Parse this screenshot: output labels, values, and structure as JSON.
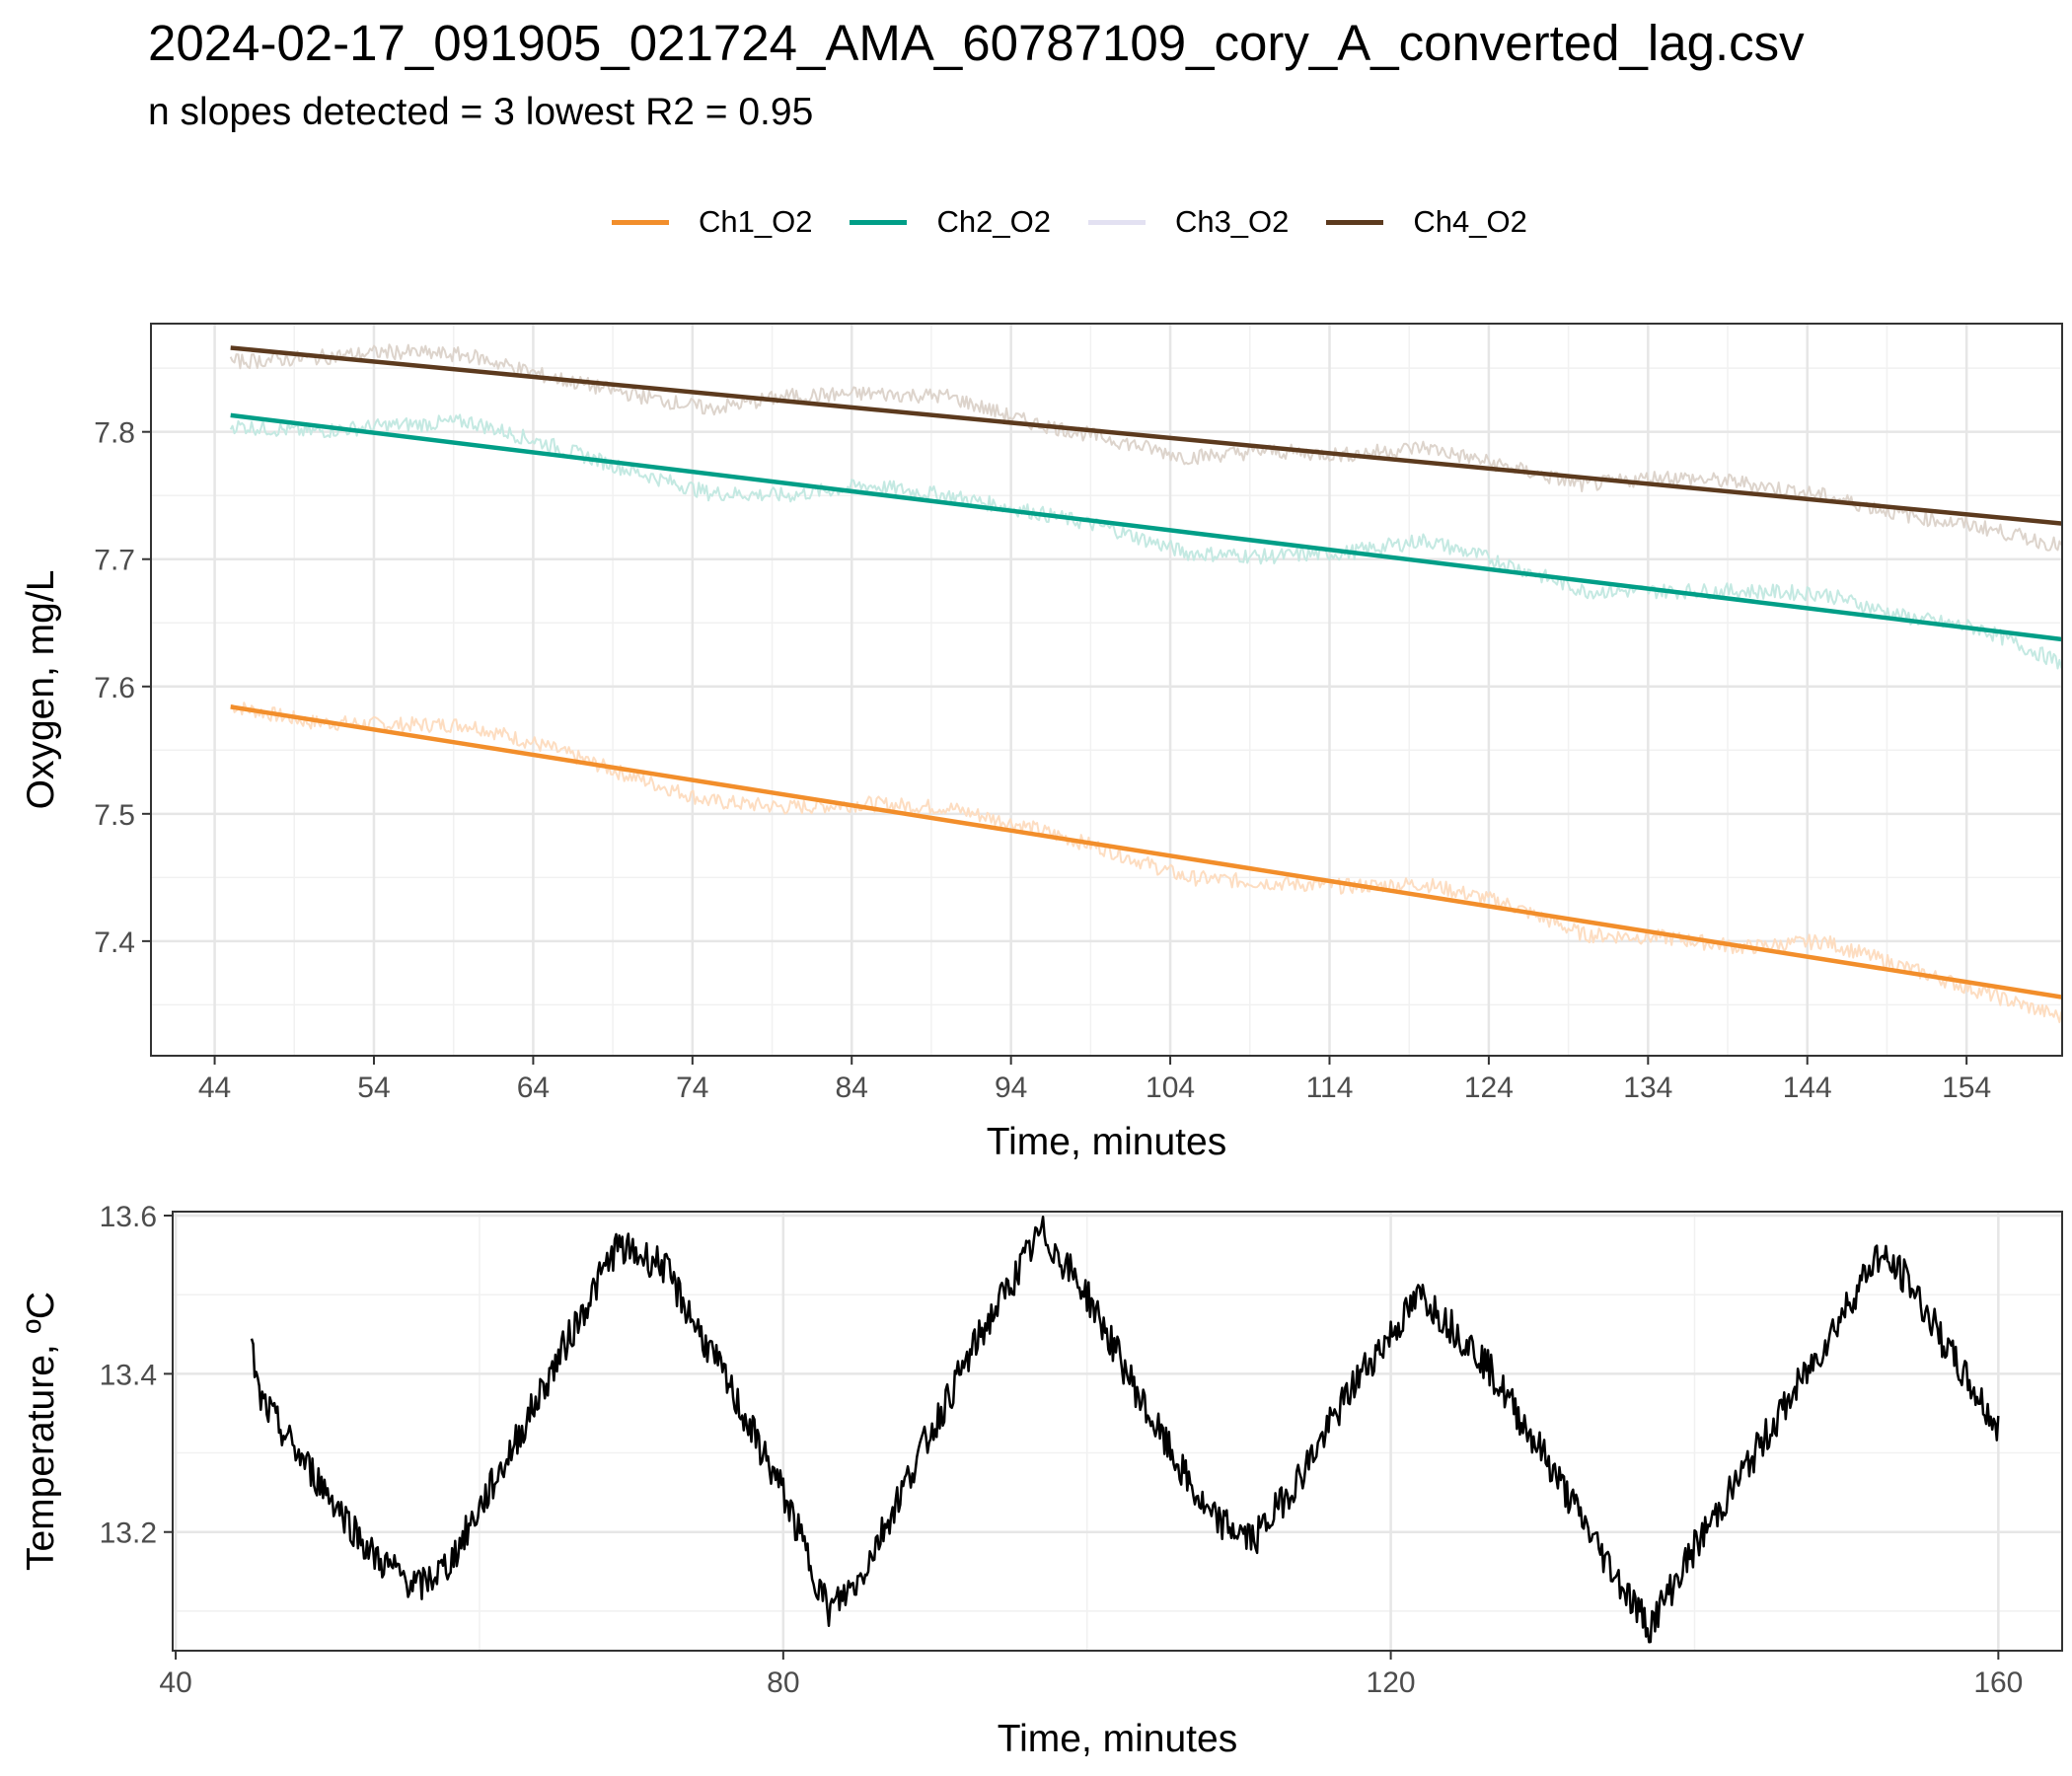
{
  "title": "2024-02-17_091905_021724_AMA_60787109_cory_A_converted_lag.csv",
  "subtitle": "n slopes detected = 3  lowest R2 = 0.95",
  "legend": [
    {
      "label": "Ch1_O2",
      "color": "#F28E2B"
    },
    {
      "label": "Ch2_O2",
      "color": "#009E87"
    },
    {
      "label": "Ch3_O2",
      "color": "#E3E1F2"
    },
    {
      "label": "Ch4_O2",
      "color": "#5C3A1E"
    }
  ],
  "chart_data": [
    {
      "type": "line",
      "xlabel": "Time, minutes",
      "ylabel": "Oxygen, mg/L",
      "xlim": [
        40,
        160
      ],
      "ylim": [
        7.31,
        7.885
      ],
      "x_ticks": [
        44,
        54,
        64,
        74,
        84,
        94,
        104,
        114,
        124,
        134,
        144,
        154
      ],
      "y_ticks": [
        7.4,
        7.5,
        7.6,
        7.7,
        7.8
      ],
      "x_tick_labels": [
        "44",
        "54",
        "64",
        "74",
        "84",
        "94",
        "104",
        "114",
        "124",
        "134",
        "144",
        "154"
      ],
      "y_tick_labels": [
        "7.4",
        "7.5",
        "7.6",
        "7.7",
        "7.8"
      ],
      "grid": true,
      "legend_position": "top",
      "series": [
        {
          "name": "Ch1_O2",
          "color": "#F28E2B",
          "raw_color": "#FDDDC1",
          "fit": [
            [
              45,
              7.584
            ],
            [
              160,
              7.356
            ]
          ],
          "raw": [
            [
              45,
              7.585
            ],
            [
              50,
              7.572
            ],
            [
              55,
              7.57
            ],
            [
              60,
              7.57
            ],
            [
              65,
              7.552
            ],
            [
              70,
              7.53
            ],
            [
              75,
              7.51
            ],
            [
              80,
              7.505
            ],
            [
              85,
              7.508
            ],
            [
              90,
              7.505
            ],
            [
              95,
              7.49
            ],
            [
              100,
              7.472
            ],
            [
              105,
              7.45
            ],
            [
              110,
              7.446
            ],
            [
              115,
              7.443
            ],
            [
              120,
              7.445
            ],
            [
              125,
              7.43
            ],
            [
              130,
              7.405
            ],
            [
              135,
              7.403
            ],
            [
              140,
              7.395
            ],
            [
              145,
              7.4
            ],
            [
              150,
              7.38
            ],
            [
              155,
              7.36
            ],
            [
              160,
              7.34
            ]
          ]
        },
        {
          "name": "Ch2_O2",
          "color": "#009E87",
          "raw_color": "#C4E9E2",
          "fit": [
            [
              45,
              7.813
            ],
            [
              160,
              7.637
            ]
          ],
          "raw": [
            [
              45,
              7.805
            ],
            [
              50,
              7.8
            ],
            [
              55,
              7.805
            ],
            [
              60,
              7.808
            ],
            [
              65,
              7.79
            ],
            [
              70,
              7.77
            ],
            [
              75,
              7.752
            ],
            [
              80,
              7.75
            ],
            [
              85,
              7.758
            ],
            [
              90,
              7.75
            ],
            [
              95,
              7.738
            ],
            [
              100,
              7.725
            ],
            [
              105,
              7.705
            ],
            [
              110,
              7.702
            ],
            [
              115,
              7.705
            ],
            [
              120,
              7.715
            ],
            [
              125,
              7.697
            ],
            [
              130,
              7.675
            ],
            [
              135,
              7.675
            ],
            [
              140,
              7.675
            ],
            [
              145,
              7.673
            ],
            [
              150,
              7.655
            ],
            [
              155,
              7.645
            ],
            [
              160,
              7.618
            ]
          ]
        },
        {
          "name": "Ch3_O2",
          "color": "#E3E1F2",
          "fit": [],
          "raw": []
        },
        {
          "name": "Ch4_O2",
          "color": "#5C3A1E",
          "raw_color": "#DDD4CC",
          "fit": [
            [
              45,
              7.866
            ],
            [
              160,
              7.728
            ]
          ],
          "raw": [
            [
              45,
              7.855
            ],
            [
              50,
              7.858
            ],
            [
              55,
              7.863
            ],
            [
              60,
              7.86
            ],
            [
              65,
              7.843
            ],
            [
              70,
              7.83
            ],
            [
              75,
              7.818
            ],
            [
              80,
              7.828
            ],
            [
              85,
              7.83
            ],
            [
              90,
              7.828
            ],
            [
              95,
              7.808
            ],
            [
              100,
              7.795
            ],
            [
              105,
              7.78
            ],
            [
              110,
              7.785
            ],
            [
              115,
              7.782
            ],
            [
              120,
              7.788
            ],
            [
              125,
              7.773
            ],
            [
              130,
              7.758
            ],
            [
              135,
              7.765
            ],
            [
              140,
              7.76
            ],
            [
              145,
              7.75
            ],
            [
              150,
              7.735
            ],
            [
              155,
              7.725
            ],
            [
              160,
              7.71
            ]
          ]
        }
      ]
    },
    {
      "type": "line",
      "xlabel": "Time, minutes",
      "ylabel": "Temperature, ºC",
      "xlim": [
        39.8,
        164.2
      ],
      "ylim": [
        13.05,
        13.605
      ],
      "x_ticks": [
        40,
        80,
        120,
        160
      ],
      "y_ticks": [
        13.2,
        13.4,
        13.6
      ],
      "x_tick_labels": [
        "40",
        "80",
        "120",
        "160"
      ],
      "y_tick_labels": [
        "13.2",
        "13.4",
        "13.6"
      ],
      "grid": true,
      "series": [
        {
          "name": "",
          "color": "#000000",
          "values": [
            [
              45,
              13.43
            ],
            [
              45.5,
              13.37
            ],
            [
              48,
              13.3
            ],
            [
              50,
              13.25
            ],
            [
              53,
              13.17
            ],
            [
              56,
              13.13
            ],
            [
              58,
              13.16
            ],
            [
              62,
              13.3
            ],
            [
              66,
              13.45
            ],
            [
              69,
              13.56
            ],
            [
              72,
              13.54
            ],
            [
              76,
              13.4
            ],
            [
              80,
              13.25
            ],
            [
              83,
              13.1
            ],
            [
              85,
              13.14
            ],
            [
              89,
              13.3
            ],
            [
              93,
              13.45
            ],
            [
              97,
              13.58
            ],
            [
              100,
              13.5
            ],
            [
              104,
              13.35
            ],
            [
              108,
              13.22
            ],
            [
              111,
              13.19
            ],
            [
              114,
              13.27
            ],
            [
              118,
              13.4
            ],
            [
              122,
              13.5
            ],
            [
              126,
              13.42
            ],
            [
              130,
              13.3
            ],
            [
              134,
              13.17
            ],
            [
              137,
              13.08
            ],
            [
              140,
              13.18
            ],
            [
              144,
              13.3
            ],
            [
              148,
              13.42
            ],
            [
              152,
              13.55
            ],
            [
              154,
              13.52
            ],
            [
              157,
              13.42
            ],
            [
              160,
              13.33
            ]
          ]
        }
      ]
    }
  ]
}
